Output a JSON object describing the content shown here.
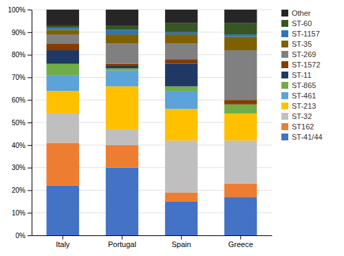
{
  "chart_data": {
    "type": "bar",
    "stacked": true,
    "categories": [
      "Italy",
      "Portugal",
      "Spain",
      "Greece"
    ],
    "series": [
      {
        "name": "ST-41/44",
        "color": "#4472C4",
        "values": [
          22,
          30,
          15,
          17
        ]
      },
      {
        "name": "ST162",
        "color": "#ED7D31",
        "values": [
          19,
          10,
          4,
          6
        ]
      },
      {
        "name": "ST-32",
        "color": "#BFBFBF",
        "values": [
          13,
          7,
          23,
          19
        ]
      },
      {
        "name": "ST-213",
        "color": "#FFC000",
        "values": [
          10,
          19,
          14,
          12
        ]
      },
      {
        "name": "ST-461",
        "color": "#5BA3D9",
        "values": [
          7,
          7,
          8,
          0
        ]
      },
      {
        "name": "ST-865",
        "color": "#70AD47",
        "values": [
          5,
          1,
          2,
          4
        ]
      },
      {
        "name": "ST-11",
        "color": "#1F3864",
        "values": [
          6,
          1,
          10,
          0
        ]
      },
      {
        "name": "ST-1572",
        "color": "#843C00",
        "values": [
          3,
          1,
          2,
          2
        ]
      },
      {
        "name": "ST-269",
        "color": "#808080",
        "values": [
          4,
          9,
          7,
          22
        ]
      },
      {
        "name": "ST-35",
        "color": "#7F6000",
        "values": [
          2,
          4,
          4,
          6
        ]
      },
      {
        "name": "ST-1157",
        "color": "#2E75B6",
        "values": [
          1,
          2,
          1,
          1
        ]
      },
      {
        "name": "ST-60",
        "color": "#375623",
        "values": [
          1,
          2,
          4,
          5
        ]
      },
      {
        "name": "Other",
        "color": "#262626",
        "values": [
          7,
          7,
          6,
          6
        ]
      }
    ],
    "ylim": [
      0,
      100
    ],
    "yticks": [
      {
        "value": 0,
        "label": "0%"
      },
      {
        "value": 10,
        "label": "10%"
      },
      {
        "value": 20,
        "label": "20%"
      },
      {
        "value": 30,
        "label": "30%"
      },
      {
        "value": 40,
        "label": "40%"
      },
      {
        "value": 50,
        "label": "50%"
      },
      {
        "value": 60,
        "label": "60%"
      },
      {
        "value": 70,
        "label": "70%"
      },
      {
        "value": 80,
        "label": "80%"
      },
      {
        "value": 90,
        "label": "90%"
      },
      {
        "value": 100,
        "label": "100%"
      }
    ],
    "grid": true,
    "legend": "right"
  }
}
